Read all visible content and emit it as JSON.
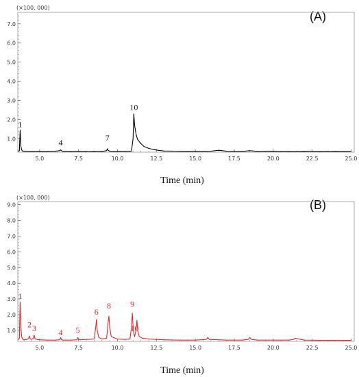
{
  "chart_data": [
    {
      "type": "line",
      "panel_label": "(A)",
      "y_multiplier": "(×100, 000)",
      "xlabel": "Time (min)",
      "xlim": [
        3.6,
        25.2
      ],
      "ylim": [
        0.3,
        7.6
      ],
      "x_ticks": [
        "5.0",
        "7.5",
        "10.0",
        "12.5",
        "15.0",
        "17.5",
        "20.0",
        "22.5",
        "25.0"
      ],
      "y_ticks": [
        "1.0",
        "2.0",
        "3.0",
        "4.0",
        "5.0",
        "6.0",
        "7.0"
      ],
      "color": "#000000",
      "series": [
        {
          "x": [
            3.6,
            3.7,
            3.75,
            3.8,
            3.85,
            3.9,
            4.0,
            4.5,
            5.0,
            5.5,
            6.0,
            6.3,
            6.35,
            6.4,
            6.5,
            7.0,
            7.5,
            8.0,
            8.5,
            9.0,
            9.3,
            9.35,
            9.4,
            9.5,
            10.0,
            10.5,
            10.9,
            11.0,
            11.05,
            11.1,
            11.2,
            11.3,
            11.5,
            11.7,
            12.0,
            12.3,
            12.6,
            13.0,
            14.0,
            15.0,
            16.0,
            16.5,
            17.0,
            18.0,
            18.5,
            19.0,
            20.0,
            21.0,
            22.0,
            23.0,
            24.0,
            25.0
          ],
          "y": [
            0.35,
            0.38,
            1.45,
            0.6,
            0.42,
            0.36,
            0.35,
            0.34,
            0.35,
            0.34,
            0.35,
            0.38,
            0.42,
            0.38,
            0.35,
            0.34,
            0.35,
            0.34,
            0.35,
            0.34,
            0.38,
            0.48,
            0.4,
            0.35,
            0.34,
            0.35,
            0.35,
            1.0,
            2.3,
            1.7,
            1.2,
            0.95,
            0.75,
            0.6,
            0.5,
            0.44,
            0.4,
            0.36,
            0.35,
            0.34,
            0.35,
            0.4,
            0.35,
            0.34,
            0.38,
            0.34,
            0.35,
            0.34,
            0.35,
            0.34,
            0.35,
            0.34
          ]
        }
      ],
      "annotations": [
        {
          "text": "1",
          "x": 3.75,
          "y": 1.6
        },
        {
          "text": "4",
          "x": 6.35,
          "y": 0.65
        },
        {
          "text": "7",
          "x": 9.35,
          "y": 0.9
        },
        {
          "text": "10",
          "x": 11.05,
          "y": 2.5
        }
      ]
    },
    {
      "type": "line",
      "panel_label": "(B)",
      "y_multiplier": "(×100, 000)",
      "xlabel": "Time (min)",
      "xlim": [
        3.6,
        25.2
      ],
      "ylim": [
        0.3,
        9.2
      ],
      "x_ticks": [
        "5.0",
        "7.5",
        "10.0",
        "12.5",
        "15.0",
        "17.5",
        "20.0",
        "22.5",
        "25.0"
      ],
      "y_ticks": [
        "1.0",
        "2.0",
        "3.0",
        "4.0",
        "5.0",
        "6.0",
        "7.0",
        "8.0",
        "9.0"
      ],
      "color": "#e8262b",
      "series": [
        {
          "x": [
            3.6,
            3.7,
            3.75,
            3.8,
            3.85,
            3.9,
            4.0,
            4.2,
            4.3,
            4.35,
            4.4,
            4.5,
            4.6,
            4.65,
            4.7,
            4.8,
            5.0,
            5.5,
            6.0,
            6.3,
            6.35,
            6.4,
            6.5,
            7.0,
            7.4,
            7.45,
            7.5,
            7.6,
            8.0,
            8.5,
            8.6,
            8.65,
            8.7,
            8.8,
            9.0,
            9.3,
            9.4,
            9.45,
            9.5,
            9.6,
            10.0,
            10.5,
            10.8,
            10.9,
            10.95,
            11.0,
            11.05,
            11.1,
            11.2,
            11.25,
            11.3,
            11.4,
            11.6,
            12.0,
            12.5,
            13.0,
            14.0,
            15.0,
            15.7,
            15.8,
            15.9,
            16.5,
            17.0,
            18.0,
            18.4,
            18.5,
            18.6,
            19.0,
            20.0,
            21.0,
            21.3,
            21.4,
            22.0,
            23.0,
            24.0,
            25.0
          ],
          "y": [
            0.4,
            0.5,
            2.8,
            1.2,
            0.6,
            0.45,
            0.4,
            0.42,
            0.5,
            0.65,
            0.45,
            0.42,
            0.5,
            0.7,
            0.48,
            0.42,
            0.4,
            0.38,
            0.38,
            0.4,
            0.55,
            0.42,
            0.38,
            0.38,
            0.4,
            0.55,
            0.45,
            0.4,
            0.42,
            0.45,
            1.2,
            1.7,
            1.0,
            0.55,
            0.45,
            0.5,
            1.5,
            1.9,
            1.2,
            0.6,
            0.45,
            0.42,
            0.45,
            1.2,
            2.1,
            1.3,
            0.8,
            0.6,
            1.1,
            1.65,
            1.0,
            0.6,
            0.5,
            0.45,
            0.42,
            0.4,
            0.38,
            0.38,
            0.42,
            0.55,
            0.42,
            0.4,
            0.38,
            0.38,
            0.42,
            0.55,
            0.42,
            0.38,
            0.38,
            0.38,
            0.42,
            0.5,
            0.38,
            0.37,
            0.37,
            0.36
          ]
        }
      ],
      "annotations": [
        {
          "text": "1",
          "x": 3.75,
          "y": 3.0
        },
        {
          "text": "2",
          "x": 4.35,
          "y": 1.2
        },
        {
          "text": "3",
          "x": 4.65,
          "y": 0.95
        },
        {
          "text": "4",
          "x": 6.35,
          "y": 0.7
        },
        {
          "text": "5",
          "x": 7.45,
          "y": 0.85
        },
        {
          "text": "6",
          "x": 8.65,
          "y": 2.0
        },
        {
          "text": "8",
          "x": 9.45,
          "y": 2.4
        },
        {
          "text": "9",
          "x": 10.95,
          "y": 2.5
        },
        {
          "text": "10",
          "x": 11.1,
          "y": 0.95
        }
      ]
    }
  ]
}
